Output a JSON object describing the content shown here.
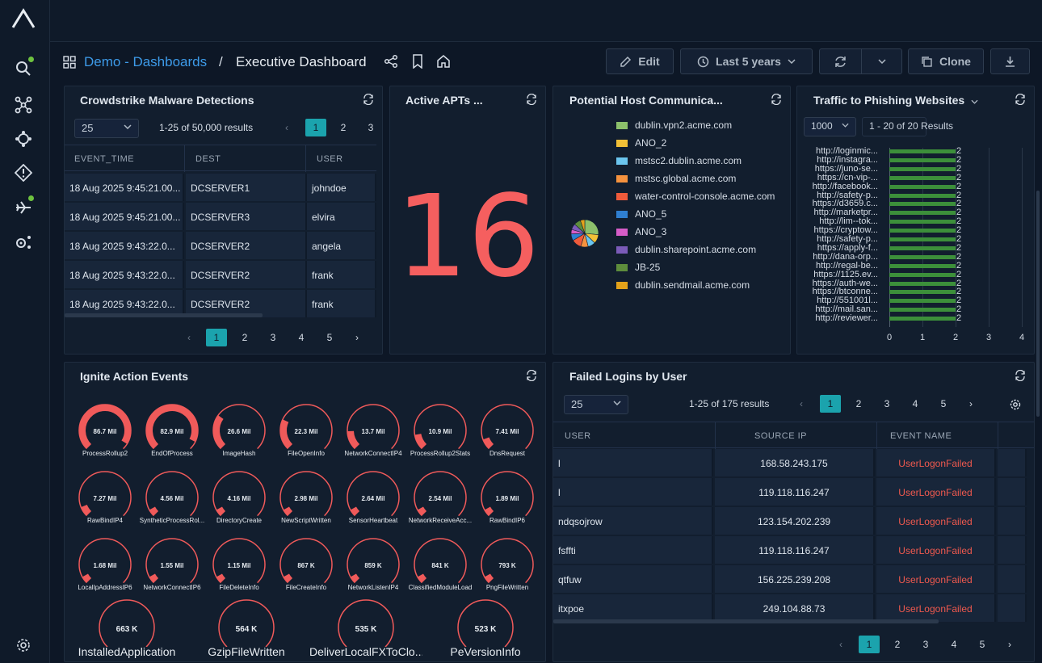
{
  "breadcrumb": {
    "link": "Demo - Dashboards",
    "sep": "/",
    "title": "Executive Dashboard"
  },
  "toolbar": {
    "edit": "Edit",
    "time": "Last 5 years",
    "clone": "Clone"
  },
  "crowdstrike": {
    "title": "Crowdstrike Malware Detections",
    "page_size": "25",
    "results": "1-25 of 50,000 results",
    "top_pages": [
      "1",
      "2",
      "3"
    ],
    "columns": [
      "EVENT_TIME",
      "DEST",
      "USER"
    ],
    "rows": [
      [
        "18 Aug 2025 9:45:21.00...",
        "DCSERVER1",
        "johndoe"
      ],
      [
        "18 Aug 2025 9:45:21.00...",
        "DCSERVER3",
        "elvira"
      ],
      [
        "18 Aug 2025 9:43:22.0...",
        "DCSERVER2",
        "angela"
      ],
      [
        "18 Aug 2025 9:43:22.0...",
        "DCSERVER2",
        "frank"
      ],
      [
        "18 Aug 2025 9:43:22.0...",
        "DCSERVER2",
        "frank"
      ]
    ],
    "pages": [
      "1",
      "2",
      "3",
      "4",
      "5"
    ]
  },
  "apts": {
    "title": "Active APTs ...",
    "value": "16"
  },
  "hostcomm": {
    "title": "Potential Host Communica...",
    "legend": [
      {
        "label": "dublin.vpn2.acme.com",
        "color": "#8cc06b"
      },
      {
        "label": "ANO_2",
        "color": "#f2c037"
      },
      {
        "label": "mstsc2.dublin.acme.com",
        "color": "#6bc5ee"
      },
      {
        "label": "mstsc.global.acme.com",
        "color": "#f5923e"
      },
      {
        "label": "water-control-console.acme.com",
        "color": "#ef5b3b"
      },
      {
        "label": "ANO_5",
        "color": "#2f7fd1"
      },
      {
        "label": "ANO_3",
        "color": "#d65dc8"
      },
      {
        "label": "dublin.sharepoint.acme.com",
        "color": "#7b5bb8"
      },
      {
        "label": "JB-25",
        "color": "#5e8d3c"
      },
      {
        "label": "dublin.sendmail.acme.com",
        "color": "#e3a21a"
      }
    ]
  },
  "phishing": {
    "title": "Traffic to Phishing Websites",
    "page_size": "1000",
    "results": "1 - 20 of 20 Results"
  },
  "chart_data": {
    "type": "bar",
    "orientation": "horizontal",
    "categories": [
      "http://loginmic...",
      "http://instagra...",
      "https://juno-se...",
      "https://cn-vip-...",
      "http://facebook...",
      "http://safety-p...",
      "https://d3659.c...",
      "http://marketpr...",
      "http://lim--tok...",
      "https://cryptow...",
      "http://safety-p...",
      "https://apply-f...",
      "http://dana-orp...",
      "http://regal-be...",
      "https://1125.ev...",
      "https://auth-we...",
      "https://btconne...",
      "http://551001l...",
      "http://mail.san...",
      "http://reviewer..."
    ],
    "values": [
      2,
      2,
      2,
      2,
      2,
      2,
      2,
      2,
      2,
      2,
      2,
      2,
      2,
      2,
      2,
      2,
      2,
      2,
      2,
      2
    ],
    "xticks": [
      "0",
      "1",
      "2",
      "3",
      "4"
    ],
    "xlim": [
      0,
      4
    ]
  },
  "ignite": {
    "title": "Ignite Action Events",
    "gauges": [
      {
        "value": "86.7 Mil",
        "label": "ProcessRollup2",
        "fill": 0.95
      },
      {
        "value": "82.9 Mil",
        "label": "EndOfProcess",
        "fill": 0.93
      },
      {
        "value": "26.6 Mil",
        "label": "ImageHash",
        "fill": 0.3
      },
      {
        "value": "22.3 Mil",
        "label": "FileOpenInfo",
        "fill": 0.26
      },
      {
        "value": "13.7 Mil",
        "label": "NetworkConnectIP4",
        "fill": 0.16
      },
      {
        "value": "10.9 Mil",
        "label": "ProcessRollup2Stats",
        "fill": 0.13
      },
      {
        "value": "7.41 Mil",
        "label": "DnsRequest",
        "fill": 0.09
      },
      {
        "value": "7.27 Mil",
        "label": "RawBindIP4",
        "fill": 0.085
      },
      {
        "value": "4.56 Mil",
        "label": "SyntheticProcessRol...",
        "fill": 0.055
      },
      {
        "value": "4.16 Mil",
        "label": "DirectoryCreate",
        "fill": 0.05
      },
      {
        "value": "2.98 Mil",
        "label": "NewScriptWritten",
        "fill": 0.035
      },
      {
        "value": "2.64 Mil",
        "label": "SensorHeartbeat",
        "fill": 0.03
      },
      {
        "value": "2.54 Mil",
        "label": "NetworkReceiveAcc...",
        "fill": 0.03
      },
      {
        "value": "1.89 Mil",
        "label": "RawBindIP6",
        "fill": 0.022
      },
      {
        "value": "1.68 Mil",
        "label": "LocalIpAddressIP6",
        "fill": 0.02
      },
      {
        "value": "1.55 Mil",
        "label": "NetworkConnectIP6",
        "fill": 0.018
      },
      {
        "value": "1.15 Mil",
        "label": "FileDeleteInfo",
        "fill": 0.014
      },
      {
        "value": "867 K",
        "label": "FileCreateInfo",
        "fill": 0.01
      },
      {
        "value": "859 K",
        "label": "NetworkListenIP4",
        "fill": 0.01
      },
      {
        "value": "841 K",
        "label": "ClassifiedModuleLoad",
        "fill": 0.01
      },
      {
        "value": "793 K",
        "label": "PngFileWritten",
        "fill": 0.009
      }
    ],
    "big_gauges": [
      {
        "value": "663 K",
        "label": "InstalledApplication"
      },
      {
        "value": "564 K",
        "label": "GzipFileWritten"
      },
      {
        "value": "535 K",
        "label": "DeliverLocalFXToClo..."
      },
      {
        "value": "523 K",
        "label": "PeVersionInfo"
      }
    ]
  },
  "failed": {
    "title": "Failed Logins by User",
    "page_size": "25",
    "results": "1-25 of 175 results",
    "top_pages": [
      "1",
      "2",
      "3",
      "4",
      "5"
    ],
    "columns": [
      "USER",
      "SOURCE IP",
      "EVENT NAME"
    ],
    "rows": [
      [
        "l",
        "168.58.243.175",
        "UserLogonFailed"
      ],
      [
        "l",
        "119.118.116.247",
        "UserLogonFailed"
      ],
      [
        "ndqsojrow",
        "123.154.202.239",
        "UserLogonFailed"
      ],
      [
        "fsffti",
        "119.118.116.247",
        "UserLogonFailed"
      ],
      [
        "qtfuw",
        "156.225.239.208",
        "UserLogonFailed"
      ],
      [
        "itxpoe",
        "249.104.88.73",
        "UserLogonFailed"
      ]
    ],
    "pages": [
      "1",
      "2",
      "3",
      "4",
      "5"
    ]
  }
}
